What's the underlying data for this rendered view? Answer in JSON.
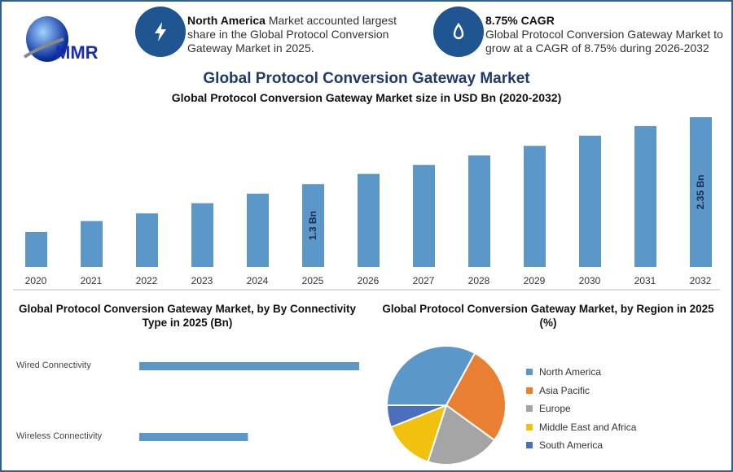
{
  "header": {
    "logo_text": "MMR",
    "info1": {
      "icon": "lightning-icon",
      "bold": "North America",
      "text": " Market accounted largest share in the Global Protocol Conversion Gateway Market in 2025."
    },
    "info2": {
      "icon": "growth-icon",
      "bold": "8.75% CAGR",
      "text": "Global Protocol Conversion Gateway Market to grow at a CAGR of 8.75% during 2026-2032"
    }
  },
  "colors": {
    "bar": "#5b97c9",
    "frame": "#2d5f8e",
    "title": "#1f3a6e"
  },
  "chart_data": [
    {
      "type": "bar",
      "title": "Global Protocol Conversion Gateway Market",
      "subtitle": "Global Protocol Conversion Gateway Market size in USD Bn (2020-2032)",
      "categories": [
        "2020",
        "2021",
        "2022",
        "2023",
        "2024",
        "2025",
        "2026",
        "2027",
        "2028",
        "2029",
        "2030",
        "2031",
        "2032"
      ],
      "values": [
        0.55,
        0.72,
        0.84,
        1.0,
        1.15,
        1.3,
        1.46,
        1.6,
        1.75,
        1.9,
        2.06,
        2.21,
        2.35
      ],
      "data_labels": {
        "2025": "1.3 Bn",
        "2032": "2.35 Bn"
      },
      "ylim": [
        0,
        2.35
      ],
      "grid": false
    },
    {
      "type": "bar",
      "orientation": "horizontal",
      "title": "Global Protocol Conversion Gateway Market, by By Connectivity Type in 2025 (Bn)",
      "categories": [
        "Wired Connectivity",
        "Wireless Connectivity"
      ],
      "values": [
        0.87,
        0.43
      ]
    },
    {
      "type": "pie",
      "title": "Global Protocol Conversion Gateway Market, by Region in 2025 (%)",
      "categories": [
        "North America",
        "Asia Pacific",
        "Europe",
        "Middle East and Africa",
        "South America"
      ],
      "values": [
        33,
        27,
        20,
        14,
        6
      ],
      "colors": [
        "#5b97c9",
        "#e87f33",
        "#a5a5a5",
        "#f2c10f",
        "#4a6fc0"
      ],
      "legend": "right"
    }
  ]
}
